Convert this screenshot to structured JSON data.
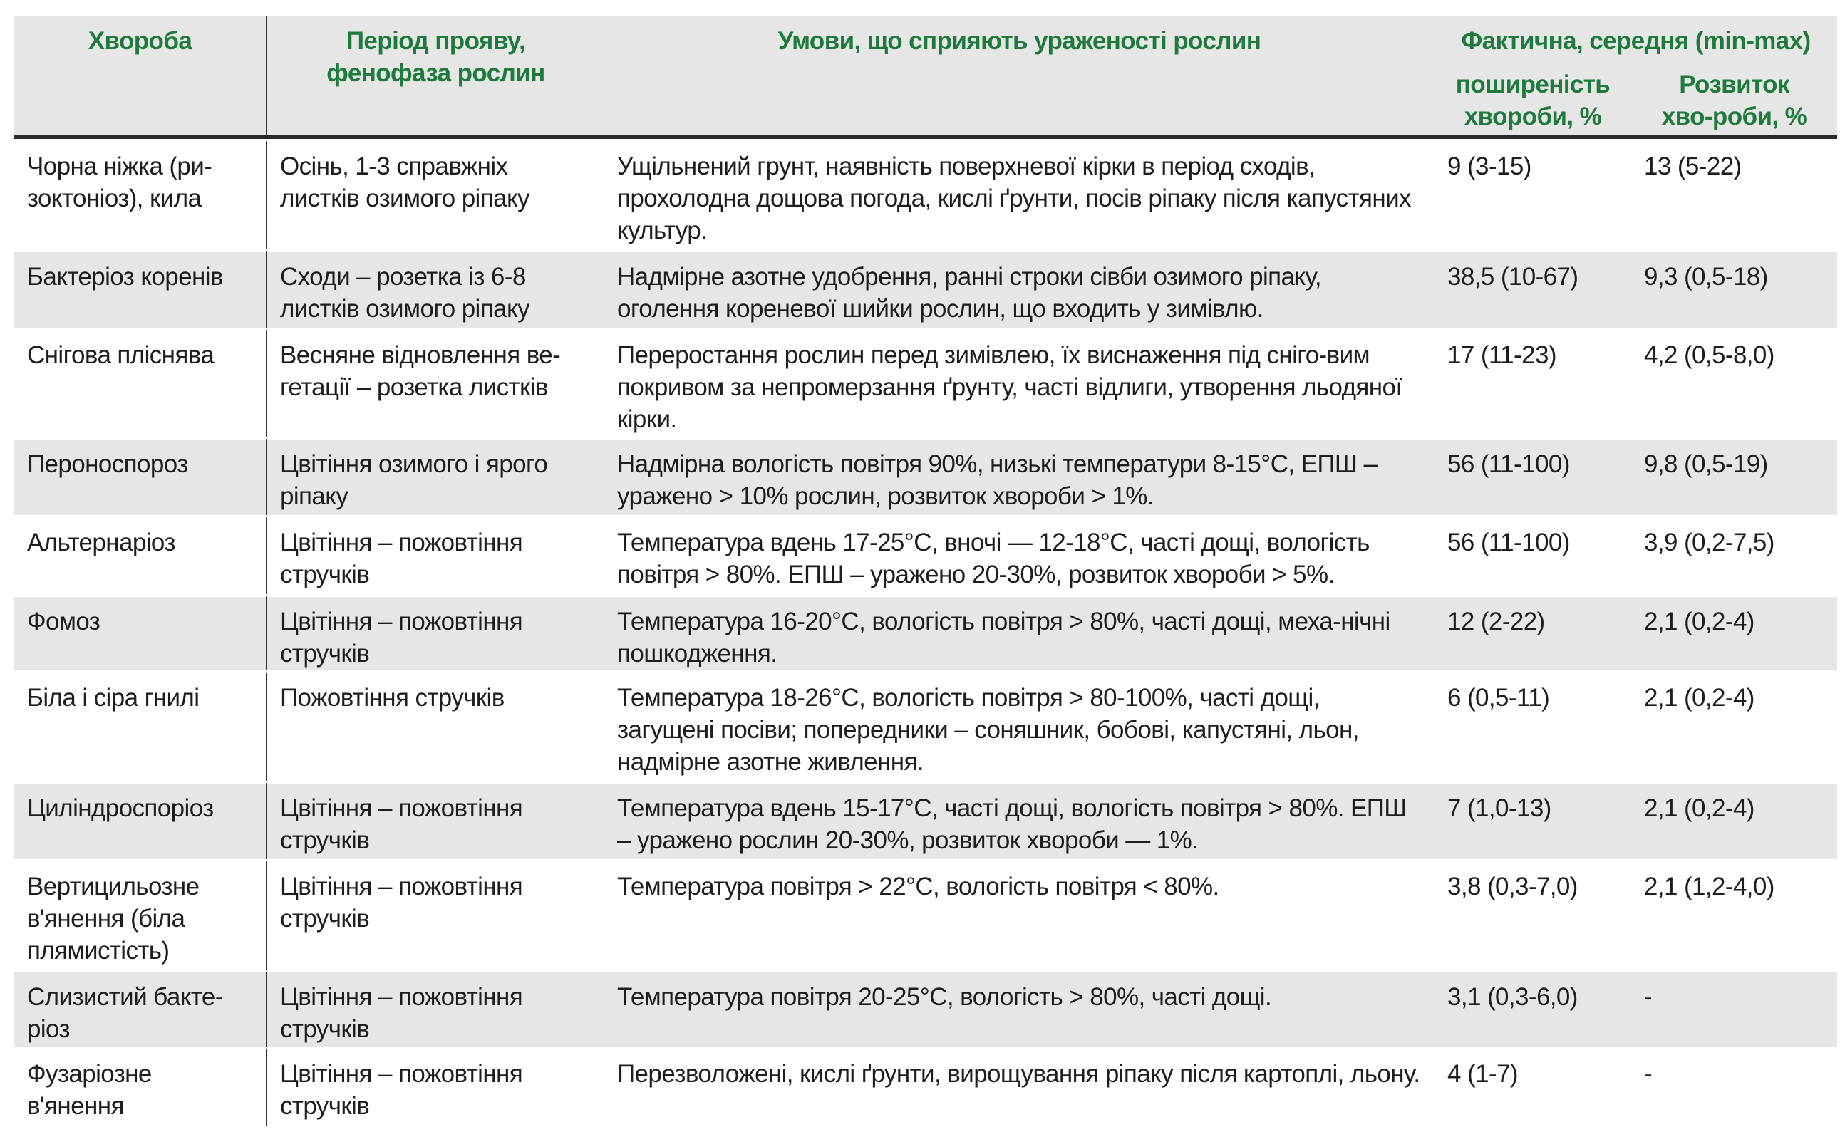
{
  "header": {
    "disease": "Хвороба",
    "period": "Період прояву, фенофаза рослин",
    "conditions": "Умови, що сприяють ураженості рослин",
    "actual": "Фактична, середня (min-max)",
    "prevalence": "поширеність хвороби, %",
    "development": "Розвиток хво-роби, %"
  },
  "colors": {
    "header_text": "#1f7a3d",
    "shade": "#e6e6e6"
  },
  "rows": [
    {
      "disease": "Чорна ніжка (ри-зоктоніоз), кила",
      "period": "Осінь, 1-3 справжніх листків озимого ріпаку",
      "conditions": "Ущільнений грунт, наявність поверхневої кірки в період сходів, прохолодна дощова погода, кислі ґрунти, посів ріпаку після капустяних культур.",
      "prevalence": "9 (3-15)",
      "development": "13 (5-22)"
    },
    {
      "disease": "Бактеріоз коренів",
      "period": "Сходи – розетка із 6-8 листків озимого ріпаку",
      "conditions": "Надмірне азотне удобрення, ранні строки сівби озимого ріпаку, оголення кореневої шийки рослин, що входить у зимівлю.",
      "prevalence": "38,5 (10-67)",
      "development": "9,3 (0,5-18)"
    },
    {
      "disease": "Снігова пліснява",
      "period": "Весняне відновлення ве-гетації – розетка листків",
      "conditions": "Переростання рослин перед зимівлею, їх виснаження під сніго-вим покривом за непромерзання ґрунту, часті відлиги, утворення льодяної кірки.",
      "prevalence": "17 (11-23)",
      "development": "4,2 (0,5-8,0)"
    },
    {
      "disease": "Пероноспороз",
      "period": "Цвітіння озимого і ярого ріпаку",
      "conditions": "Надмірна вологість повітря   90%, низькі температури 8-15°С, ЕПШ – уражено > 10% рослин, розвиток хвороби > 1%.",
      "prevalence": "56 (11-100)",
      "development": "9,8 (0,5-19)"
    },
    {
      "disease": "Альтернаріоз",
      "period": "Цвітіння – пожовтіння стручків",
      "conditions": "Температура вдень 17-25°С, вночі — 12-18°С, часті дощі, вологість повітря > 80%. ЕПШ – уражено 20-30%, розвиток хвороби  > 5%.",
      "prevalence": "56 (11-100)",
      "development": "3,9 (0,2-7,5)"
    },
    {
      "disease": "Фомоз",
      "period": "Цвітіння – пожовтіння стручків",
      "conditions": "Температура 16-20°С, вологість повітря  > 80%, часті дощі, меха-нічні пошкодження.",
      "prevalence": "12 (2-22)",
      "development": "2,1 (0,2-4)"
    },
    {
      "disease": "Біла і сіра гнилі",
      "period": "Пожовтіння стручків",
      "conditions": "Температура 18-26°С, вологість повітря  > 80-100%, часті дощі, загущені посіви; попередники – соняшник, бобові, капустяні, льон, надмірне азотне живлення.",
      "prevalence": "6 (0,5-11)",
      "development": "2,1 (0,2-4)"
    },
    {
      "disease": "Циліндроспоріоз",
      "period": "Цвітіння – пожовтіння стручків",
      "conditions": "Температура вдень 15-17°С, часті дощі, вологість повітря  > 80%. ЕПШ – уражено рослин 20-30%, розвиток хвороби — 1%.",
      "prevalence": "7 (1,0-13)",
      "development": "2,1 (0,2-4)"
    },
    {
      "disease": "Вертицильозне в'янення (біла плямистість)",
      "period": "Цвітіння – пожовтіння стручків",
      "conditions": "Температура повітря > 22°С, вологість повітря < 80%.",
      "prevalence": "3,8 (0,3-7,0)",
      "development": "2,1 (1,2-4,0)"
    },
    {
      "disease": "Слизистий бакте-ріоз",
      "period": "Цвітіння – пожовтіння стручків",
      "conditions": "Температура повітря 20-25°С, вологість  > 80%, часті дощі.",
      "prevalence": "3,1 (0,3-6,0)",
      "development": "-"
    },
    {
      "disease": "Фузаріозне в'янення",
      "period": "Цвітіння – пожовтіння стручків",
      "conditions": "Перезволожені, кислі ґрунти, вирощування ріпаку після картоплі, льону.",
      "prevalence": "4 (1-7)",
      "development": "-"
    }
  ]
}
